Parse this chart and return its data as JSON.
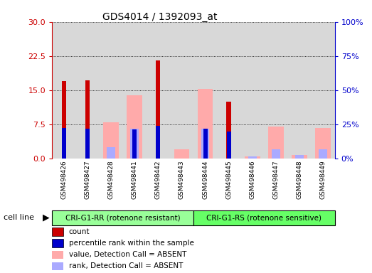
{
  "title": "GDS4014 / 1392093_at",
  "samples": [
    "GSM498426",
    "GSM498427",
    "GSM498428",
    "GSM498441",
    "GSM498442",
    "GSM498443",
    "GSM498444",
    "GSM498445",
    "GSM498446",
    "GSM498447",
    "GSM498448",
    "GSM498449"
  ],
  "groups": [
    "CRI-G1-RR (rotenone resistant)",
    "CRI-G1-RS (rotenone sensitive)"
  ],
  "group_sizes": [
    6,
    6
  ],
  "count": [
    17.0,
    17.2,
    0,
    0,
    21.5,
    0,
    0,
    12.5,
    0,
    0,
    0,
    0
  ],
  "rank_pct": [
    22.0,
    21.5,
    0,
    21.0,
    24.0,
    0,
    21.5,
    19.5,
    0,
    0,
    0,
    0
  ],
  "absent_value": [
    0,
    0,
    8.0,
    13.8,
    0,
    2.0,
    15.3,
    0,
    0.5,
    7.0,
    0.7,
    6.7
  ],
  "absent_rank_pct": [
    0,
    0,
    8.0,
    21.5,
    0,
    0,
    21.5,
    0,
    1.5,
    6.5,
    2.5,
    6.5
  ],
  "ylim_left": [
    0,
    30
  ],
  "ylim_right": [
    0,
    100
  ],
  "yticks_left": [
    0,
    7.5,
    15,
    22.5,
    30
  ],
  "yticks_right": [
    0,
    25,
    50,
    75,
    100
  ],
  "count_color": "#cc0000",
  "rank_color": "#0000cc",
  "absent_value_color": "#ffaaaa",
  "absent_rank_color": "#aaaaff",
  "group1_color": "#99ff99",
  "group2_color": "#66ff66",
  "col_bg_color": "#d8d8d8",
  "legend_items": [
    "count",
    "percentile rank within the sample",
    "value, Detection Call = ABSENT",
    "rank, Detection Call = ABSENT"
  ]
}
